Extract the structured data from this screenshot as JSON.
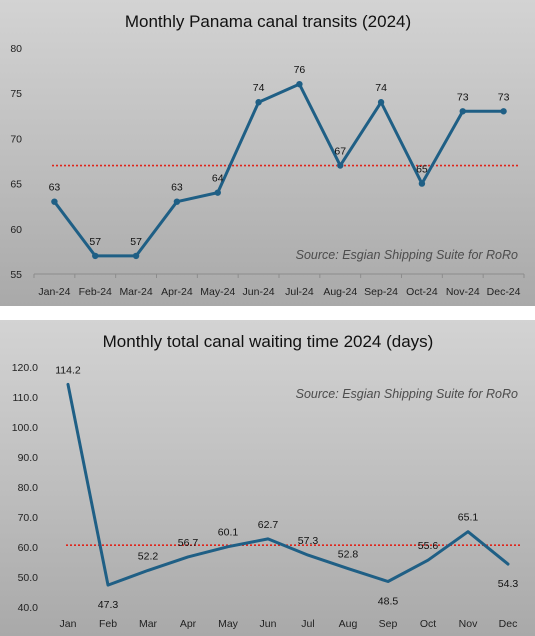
{
  "charts": [
    {
      "type": "line",
      "title": "Monthly Panama canal transits (2024)",
      "source": "Source: Esgian Shipping Suite for RoRo",
      "ylim": [
        55,
        80
      ],
      "yticks": [
        "55",
        "60",
        "65",
        "70",
        "75",
        "80"
      ],
      "ytick_values": [
        55,
        60,
        65,
        70,
        75,
        80
      ],
      "categories": [
        "Jan-24",
        "Feb-24",
        "Mar-24",
        "Apr-24",
        "May-24",
        "Jun-24",
        "Jul-24",
        "Aug-24",
        "Sep-24",
        "Oct-24",
        "Nov-24",
        "Dec-24"
      ],
      "values": [
        63,
        57,
        57,
        63,
        64,
        74,
        76,
        67,
        74,
        65,
        73,
        73
      ],
      "value_labels": [
        "63",
        "57",
        "57",
        "63",
        "64",
        "74",
        "76",
        "67",
        "74",
        "65",
        "73",
        "73"
      ],
      "average_line": 67,
      "grid": false,
      "colors": {
        "line": "#1f5f85",
        "average": "#e0241b"
      }
    },
    {
      "type": "line",
      "title": "Monthly total canal waiting time 2024 (days)",
      "source": "Source: Esgian Shipping Suite for RoRo",
      "ylim": [
        40,
        120
      ],
      "yticks": [
        "40.0",
        "50.0",
        "60.0",
        "70.0",
        "80.0",
        "90.0",
        "100.0",
        "110.0",
        "120.0"
      ],
      "ytick_values": [
        40,
        50,
        60,
        70,
        80,
        90,
        100,
        110,
        120
      ],
      "categories": [
        "Jan",
        "Feb",
        "Mar",
        "Apr",
        "May",
        "Jun",
        "Jul",
        "Aug",
        "Sep",
        "Oct",
        "Nov",
        "Dec"
      ],
      "values": [
        114.2,
        47.3,
        52.2,
        56.7,
        60.1,
        62.7,
        57.3,
        52.8,
        48.5,
        55.6,
        65.1,
        54.3
      ],
      "value_labels": [
        "114.2",
        "47.3",
        "52.2",
        "56.7",
        "60.1",
        "62.7",
        "57.3",
        "52.8",
        "48.5",
        "55.6",
        "65.1",
        "54.3"
      ],
      "average_line": 60.6,
      "grid": false,
      "colors": {
        "line": "#1f5f85",
        "average": "#e0241b"
      }
    }
  ]
}
